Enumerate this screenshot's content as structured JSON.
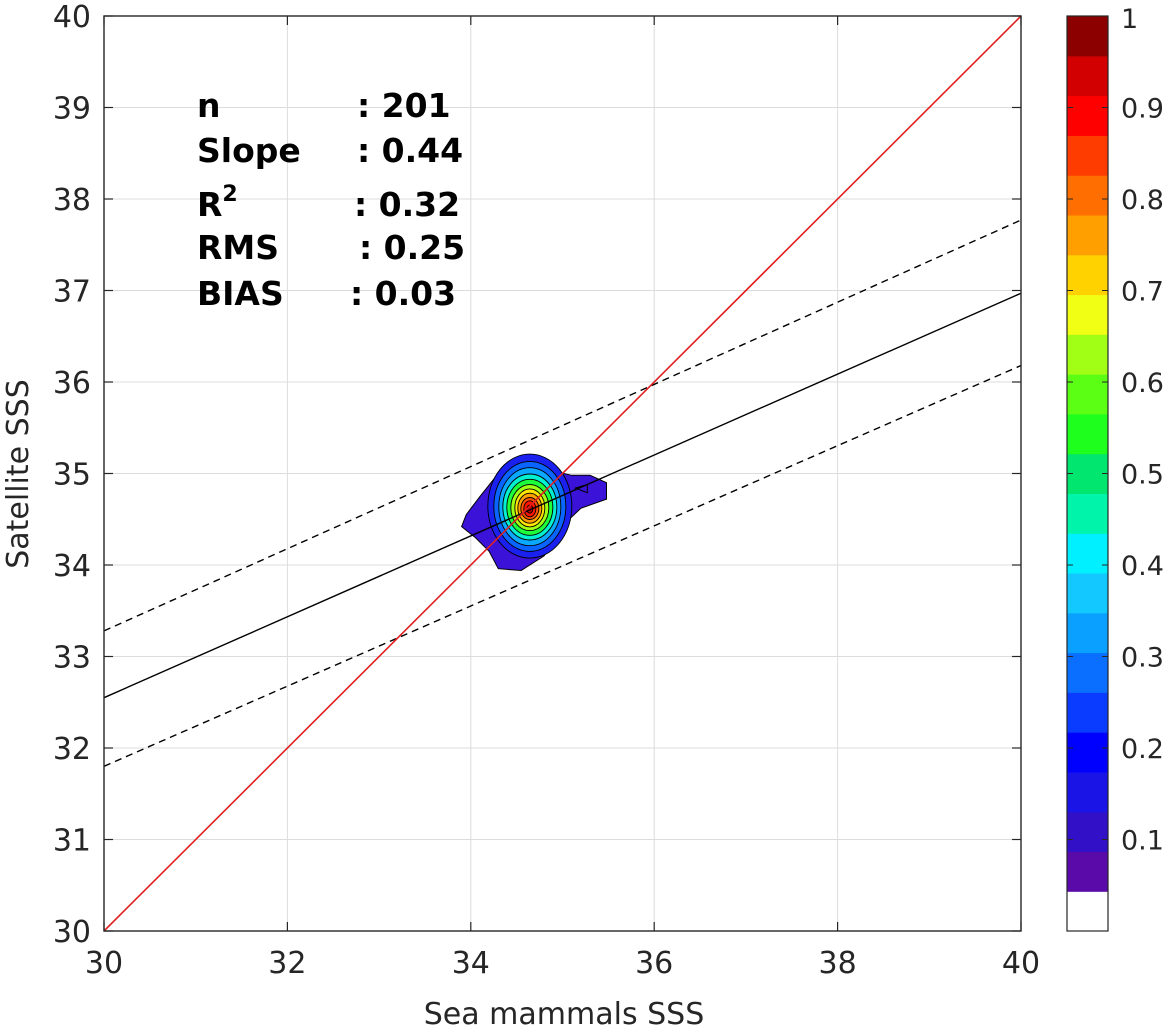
{
  "chart_data": {
    "type": "contour-scatter",
    "xlabel": "Sea mammals SSS",
    "ylabel": "Satellite SSS",
    "xlim": [
      30,
      40
    ],
    "ylim": [
      30,
      40
    ],
    "xticks": [
      "30",
      "32",
      "34",
      "36",
      "38",
      "40"
    ],
    "yticks": [
      "30",
      "31",
      "32",
      "33",
      "34",
      "35",
      "36",
      "37",
      "38",
      "39",
      "40"
    ],
    "grid": true,
    "stats": {
      "n_label": "n",
      "n_value": ": 201",
      "slope_label": "Slope",
      "slope_value": ": 0.44",
      "r2_label": "R",
      "r2_sup": "2",
      "r2_value": ": 0.32",
      "rms_label": "RMS",
      "rms_value": ": 0.25",
      "bias_label": "BIAS",
      "bias_value": ": 0.03"
    },
    "lines": {
      "one_to_one": {
        "color": "#e02020",
        "x": [
          30,
          40
        ],
        "y": [
          30,
          40
        ]
      },
      "regression": {
        "color": "#000000",
        "style": "solid",
        "x": [
          30,
          40
        ],
        "y": [
          32.55,
          36.97
        ]
      },
      "upper_bound": {
        "color": "#000000",
        "style": "dashed",
        "x": [
          30,
          40
        ],
        "y": [
          33.28,
          37.77
        ]
      },
      "lower_bound": {
        "color": "#000000",
        "style": "dashed",
        "x": [
          30,
          40
        ],
        "y": [
          31.8,
          36.18
        ]
      }
    },
    "density_peak": {
      "x": 34.6,
      "y": 34.6
    },
    "colorbar": {
      "range": [
        0,
        1
      ],
      "ticks": [
        "0.1",
        "0.2",
        "0.3",
        "0.4",
        "0.5",
        "0.6",
        "0.7",
        "0.8",
        "0.9",
        "1"
      ],
      "colors": [
        "#ffffff",
        "#5a0aa8",
        "#3210c8",
        "#1a14e6",
        "#0000ff",
        "#0a3cff",
        "#0a6eff",
        "#0aa0ff",
        "#12c8ff",
        "#00f0ff",
        "#00f5aa",
        "#00e66e",
        "#1eff1e",
        "#5aff14",
        "#a0ff14",
        "#f0ff14",
        "#ffd200",
        "#ffa000",
        "#ff6e00",
        "#ff3c00",
        "#ff0000",
        "#d20000",
        "#8c0000"
      ]
    }
  }
}
